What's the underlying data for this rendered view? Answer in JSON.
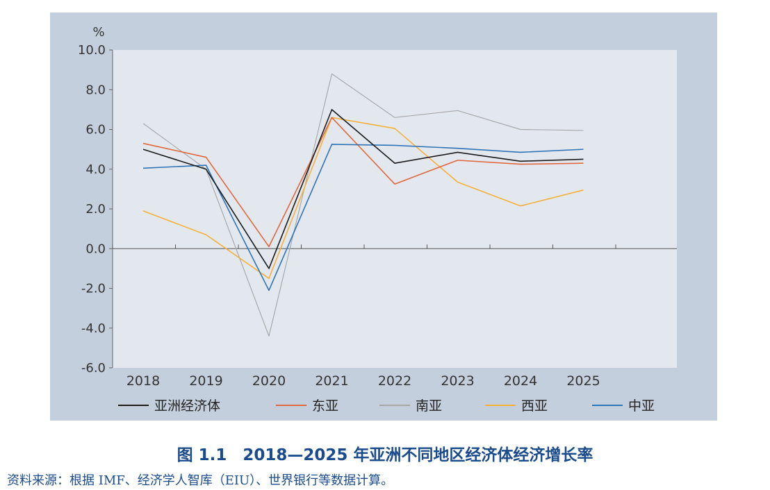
{
  "chart_data": {
    "type": "line",
    "title": "",
    "ylabel": "%",
    "xlabel": "",
    "ylim": [
      -6.0,
      10.0
    ],
    "yticks": [
      "10.0",
      "8.0",
      "6.0",
      "4.0",
      "2.0",
      "0.0",
      "-2.0",
      "-4.0",
      "-6.0"
    ],
    "x": [
      "2018",
      "2019",
      "2020",
      "2021",
      "2022",
      "2023",
      "2024",
      "2025"
    ],
    "grid": false,
    "legend_position": "bottom",
    "series": [
      {
        "name": "亚洲经济体",
        "color": "#1a1a1a",
        "values": [
          5.0,
          4.0,
          -1.0,
          7.0,
          4.3,
          4.85,
          4.4,
          4.5
        ]
      },
      {
        "name": "东亚",
        "color": "#e0683c",
        "values": [
          5.3,
          4.6,
          0.1,
          6.6,
          3.25,
          4.45,
          4.25,
          4.3
        ]
      },
      {
        "name": "南亚",
        "color": "#a8a8a8",
        "values": [
          6.3,
          4.0,
          -4.4,
          8.8,
          6.6,
          6.95,
          6.0,
          5.95
        ]
      },
      {
        "name": "西亚",
        "color": "#f4b13a",
        "values": [
          1.9,
          0.7,
          -1.5,
          6.6,
          6.05,
          3.35,
          2.15,
          2.95
        ]
      },
      {
        "name": "中亚",
        "color": "#2e74b5",
        "values": [
          4.05,
          4.2,
          -2.1,
          5.25,
          5.2,
          5.05,
          4.85,
          5.0
        ]
      }
    ]
  },
  "caption": "图 1.1　2018—2025 年亚洲不同地区经济体经济增长率",
  "source": "资料来源：根据 IMF、经济学人智库（EIU）、世界银行等数据计算。"
}
